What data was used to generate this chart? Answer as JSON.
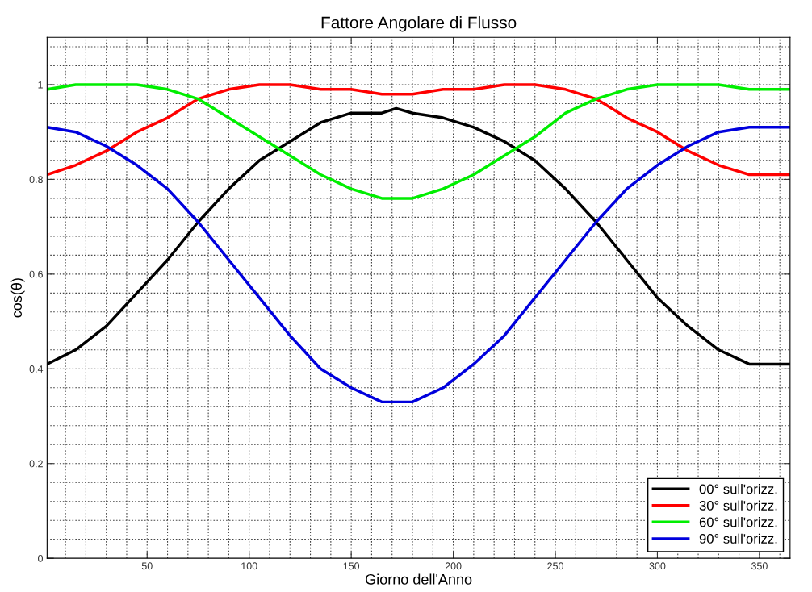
{
  "chart_data": {
    "type": "line",
    "title": "Fattore Angolare di Flusso",
    "xlabel": "Giorno dell'Anno",
    "ylabel": "cos(θ)",
    "x": [
      1,
      15,
      30,
      45,
      60,
      75,
      90,
      105,
      120,
      135,
      150,
      165,
      172,
      180,
      195,
      210,
      225,
      240,
      255,
      270,
      285,
      300,
      315,
      330,
      345,
      355,
      365
    ],
    "series": [
      {
        "name": "00° sull'orizz.",
        "color": "#000000",
        "values": [
          0.41,
          0.44,
          0.49,
          0.56,
          0.63,
          0.71,
          0.78,
          0.84,
          0.88,
          0.92,
          0.94,
          0.94,
          0.95,
          0.94,
          0.93,
          0.91,
          0.88,
          0.84,
          0.78,
          0.71,
          0.63,
          0.55,
          0.49,
          0.44,
          0.41,
          0.41,
          0.41
        ]
      },
      {
        "name": "30° sull'orizz.",
        "color": "#ff0000",
        "values": [
          0.81,
          0.83,
          0.86,
          0.9,
          0.93,
          0.97,
          0.99,
          1.0,
          1.0,
          0.99,
          0.99,
          0.98,
          0.98,
          0.98,
          0.99,
          0.99,
          1.0,
          1.0,
          0.99,
          0.97,
          0.93,
          0.9,
          0.86,
          0.83,
          0.81,
          0.81,
          0.81
        ]
      },
      {
        "name": "60° sull'orizz.",
        "color": "#00ee00",
        "values": [
          0.99,
          1.0,
          1.0,
          1.0,
          0.99,
          0.97,
          0.93,
          0.89,
          0.85,
          0.81,
          0.78,
          0.76,
          0.76,
          0.76,
          0.78,
          0.81,
          0.85,
          0.89,
          0.94,
          0.97,
          0.99,
          1.0,
          1.0,
          1.0,
          0.99,
          0.99,
          0.99
        ]
      },
      {
        "name": "90° sull'orizz.",
        "color": "#0000dd",
        "values": [
          0.91,
          0.9,
          0.87,
          0.83,
          0.78,
          0.71,
          0.63,
          0.55,
          0.47,
          0.4,
          0.36,
          0.33,
          0.33,
          0.33,
          0.36,
          0.41,
          0.47,
          0.55,
          0.63,
          0.71,
          0.78,
          0.83,
          0.87,
          0.9,
          0.91,
          0.91,
          0.91
        ]
      }
    ],
    "xlim": [
      1,
      365
    ],
    "ylim": [
      0,
      1.1
    ],
    "xticks": [
      50,
      100,
      150,
      200,
      250,
      300,
      350
    ],
    "yticks": [
      0,
      0.2,
      0.4,
      0.6,
      0.8,
      1
    ],
    "grid": true,
    "legend": "bottom right",
    "line_style": "solid",
    "marker": "none"
  }
}
